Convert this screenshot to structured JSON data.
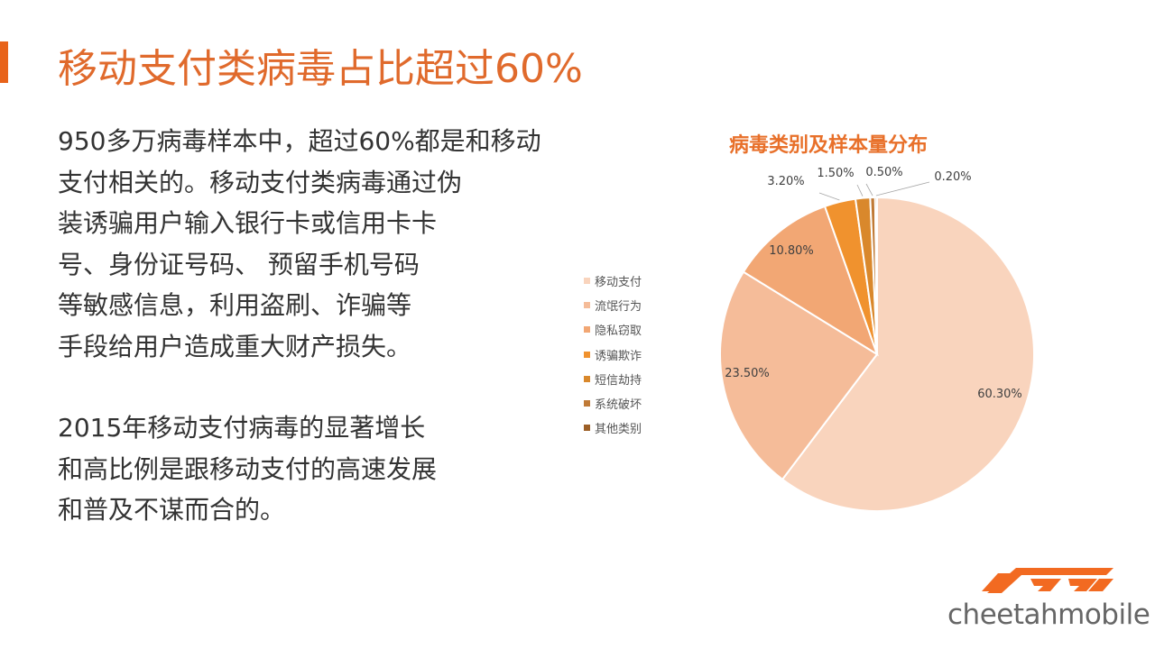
{
  "slide": {
    "title": "移动支付类病毒占比超过60%",
    "paragraph1": [
      "950多万病毒样本中，超过60%都是和移动",
      "支付相关的。移动支付类病毒通过伪",
      "装诱骗用户输入银行卡或信用卡卡",
      "号、身份证号码、 预留手机号码",
      "等敏感信息，利用盗刷、诈骗等",
      "手段给用户造成重大财产损失。"
    ],
    "paragraph2": [
      "2015年移动支付病毒的显著增长",
      "和高比例是跟移动支付的高速发展",
      "和普及不谋而合的。"
    ],
    "logo_text": "cheetahmobile",
    "accent_color": "#e8631a"
  },
  "chart_data": {
    "type": "pie",
    "title": "病毒类别及样本量分布",
    "categories": [
      "移动支付",
      "流氓行为",
      "隐私窃取",
      "诱骗欺诈",
      "短信劫持",
      "系统破坏",
      "其他类别"
    ],
    "values": [
      60.3,
      23.5,
      10.8,
      3.2,
      1.5,
      0.5,
      0.2
    ],
    "labels": [
      "60.30%",
      "23.50%",
      "10.80%",
      "3.20%",
      "1.50%",
      "0.50%",
      "0.20%"
    ],
    "colors": [
      "#f9d4bd",
      "#f5bc99",
      "#f2a774",
      "#f0922e",
      "#d9882c",
      "#c07a36",
      "#9c5f27"
    ],
    "legend_position": "left",
    "start_angle_deg": 0,
    "direction": "clockwise"
  }
}
